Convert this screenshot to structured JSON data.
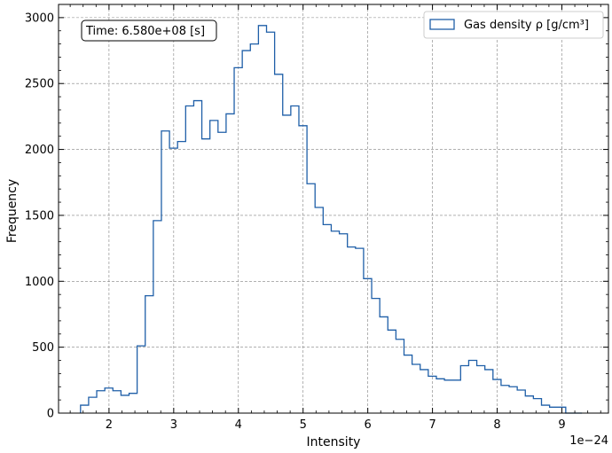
{
  "chart_data": {
    "type": "histogram",
    "xlabel": "Intensity",
    "ylabel": "Frequency",
    "x_offset_label": "1e−24",
    "annotation": "Time: 6.580e+08 [s]",
    "legend": {
      "label": "Gas density ρ [g/cm³]",
      "placement": "top-right"
    },
    "grid": true,
    "xlim": [
      1.22,
      9.72
    ],
    "ylim": [
      0,
      3100
    ],
    "x_ticks": [
      2,
      3,
      4,
      5,
      6,
      7,
      8,
      9
    ],
    "x_tick_labels": [
      "2",
      "3",
      "4",
      "5",
      "6",
      "7",
      "8",
      "9"
    ],
    "y_ticks": [
      0,
      500,
      1000,
      1500,
      2000,
      2500,
      3000
    ],
    "y_tick_labels": [
      "0",
      "500",
      "1000",
      "1500",
      "2000",
      "2500",
      "3000"
    ],
    "series": [
      {
        "color": "#1f5fa8",
        "bin_edges": [
          1.56,
          1.685,
          1.81,
          1.935,
          2.06,
          2.185,
          2.31,
          2.435,
          2.56,
          2.685,
          2.81,
          2.935,
          3.06,
          3.185,
          3.31,
          3.435,
          3.56,
          3.685,
          3.81,
          3.935,
          4.06,
          4.185,
          4.31,
          4.435,
          4.56,
          4.685,
          4.81,
          4.935,
          5.06,
          5.185,
          5.31,
          5.435,
          5.56,
          5.685,
          5.81,
          5.935,
          6.06,
          6.185,
          6.31,
          6.435,
          6.56,
          6.685,
          6.81,
          6.935,
          7.06,
          7.185,
          7.31,
          7.435,
          7.56,
          7.685,
          7.81,
          7.935,
          8.06,
          8.185,
          8.31,
          8.435,
          8.56,
          8.685,
          8.81,
          8.935,
          9.06,
          9.185,
          9.31
        ],
        "counts": [
          60,
          120,
          170,
          190,
          170,
          135,
          150,
          510,
          890,
          1460,
          2140,
          2010,
          2060,
          2330,
          2370,
          2080,
          2220,
          2130,
          2270,
          2620,
          2750,
          2800,
          2940,
          2890,
          2570,
          2260,
          2330,
          2180,
          1740,
          1560,
          1430,
          1380,
          1360,
          1260,
          1250,
          1020,
          870,
          730,
          630,
          560,
          440,
          370,
          330,
          280,
          260,
          250,
          250,
          360,
          400,
          360,
          330,
          255,
          210,
          200,
          175,
          130,
          110,
          60,
          45,
          45,
          0,
          0
        ]
      }
    ]
  }
}
